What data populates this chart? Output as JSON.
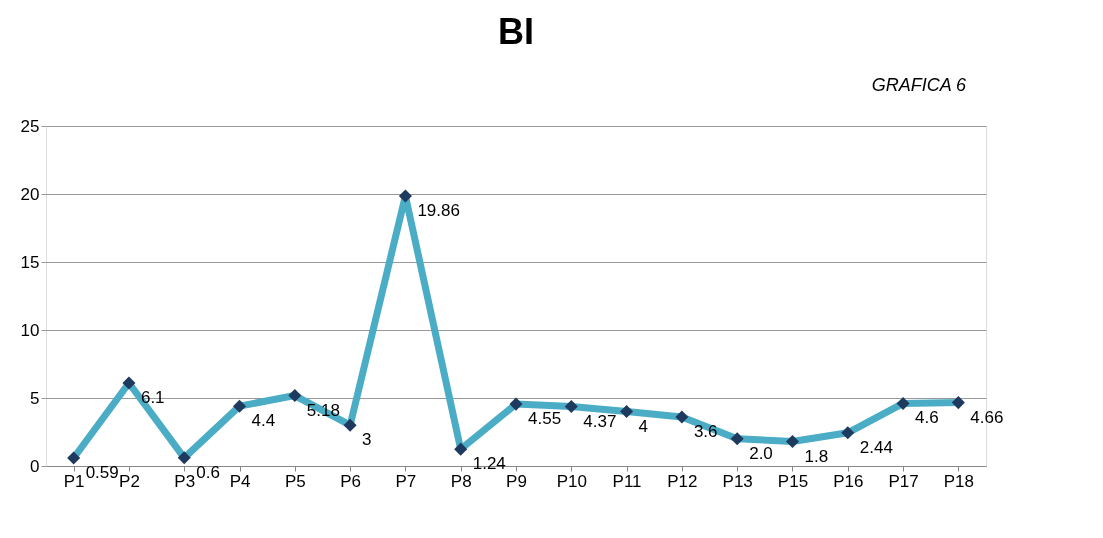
{
  "chart_data": {
    "type": "line",
    "title": "BI",
    "annotations": [
      "GRAFICA 6"
    ],
    "categories": [
      "P1",
      "P2",
      "P3",
      "P4",
      "P5",
      "P6",
      "P7",
      "P8",
      "P9",
      "P10",
      "P11",
      "P12",
      "P13",
      "P15",
      "P16",
      "P17",
      "P18"
    ],
    "series": [
      {
        "color": "#4bacc6",
        "values": [
          0.59,
          6.1,
          0.6,
          4.4,
          5.18,
          3,
          19.86,
          1.24,
          4.55,
          4.37,
          4,
          3.6,
          2.0,
          1.8,
          2.44,
          4.6,
          4.66
        ],
        "value_labels": [
          "0.59",
          "6.1",
          "0.6",
          "4.4",
          "5.18",
          "3",
          "19.86",
          "1.24",
          "4.55",
          "4.37",
          "4",
          "3.6",
          "2.0",
          "1.8",
          "2.44",
          "4.6",
          "4.66"
        ]
      }
    ],
    "ylim": [
      0,
      25
    ],
    "yticks": [
      0,
      5,
      10,
      15,
      20,
      25
    ],
    "grid": "y",
    "legend": false,
    "marker": "diamond",
    "line_style": "solid"
  }
}
